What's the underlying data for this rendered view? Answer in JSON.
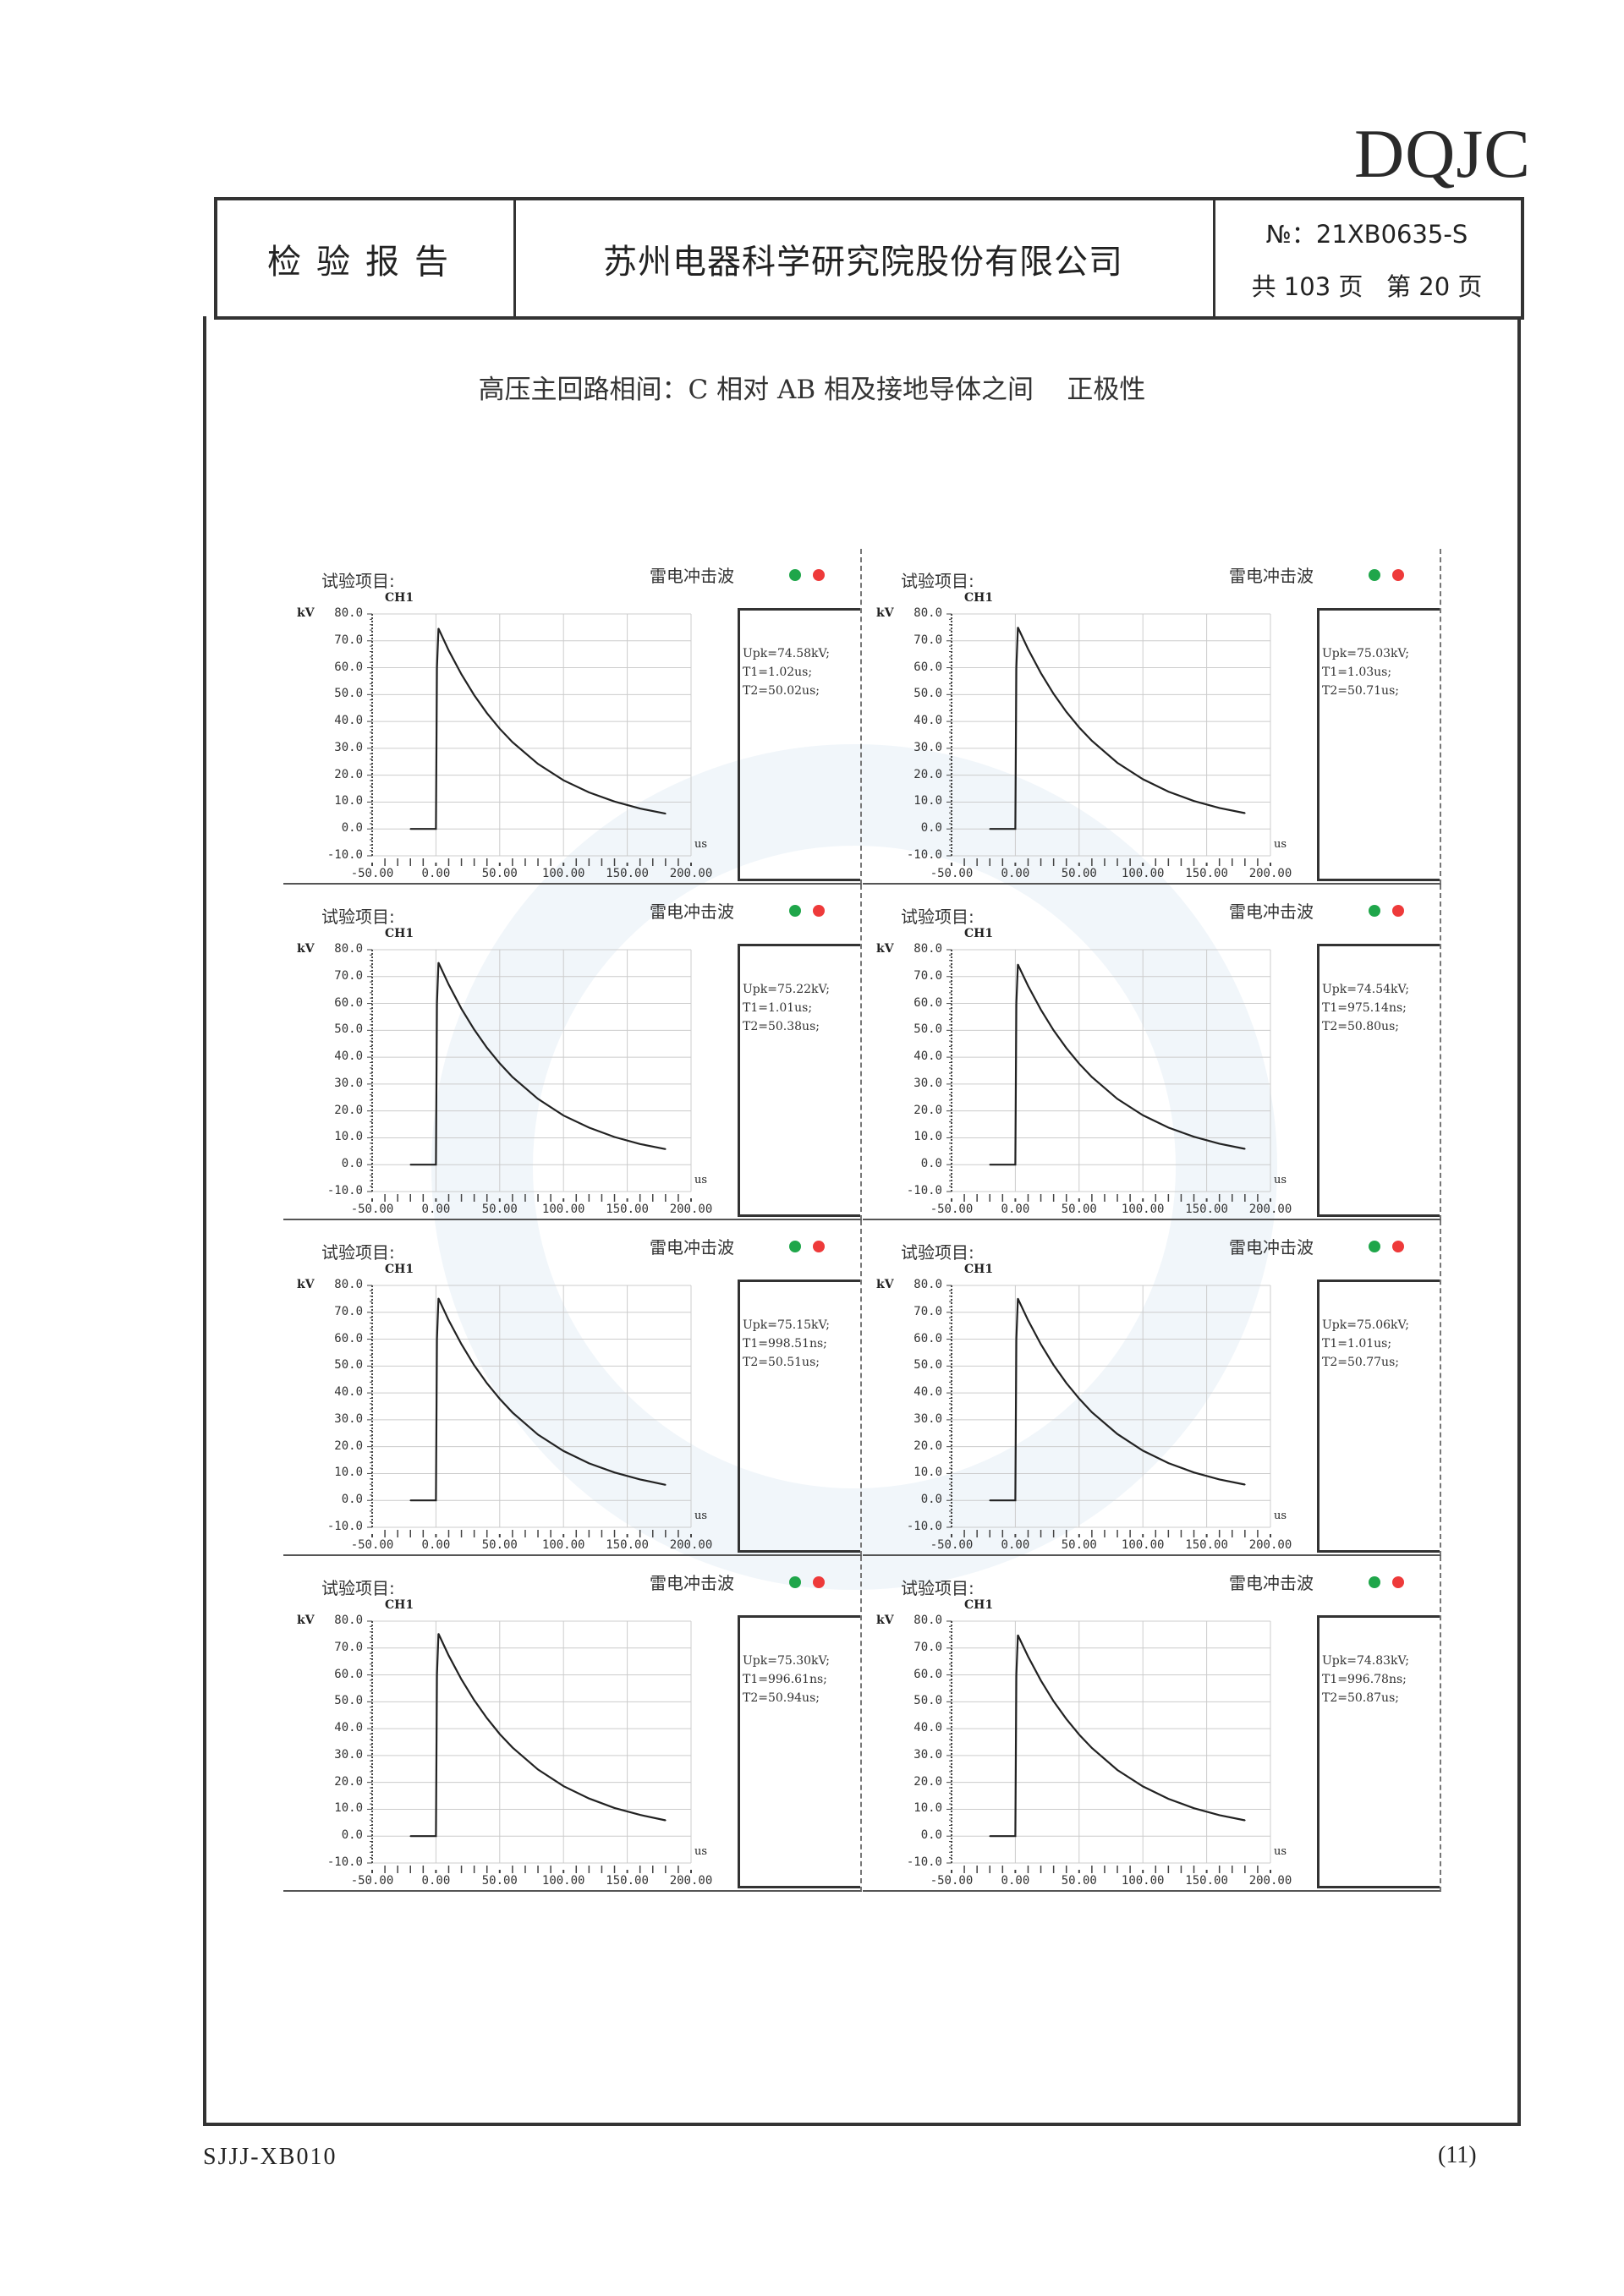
{
  "logo": "DQJC",
  "header": {
    "doc_type": "检验报告",
    "company": "苏州电器科学研究院股份有限公司",
    "report_no": "№：21XB0635-S",
    "pages": "共 103 页   第 20 页"
  },
  "subtitle": "高压主回路相间：C 相对 AB 相及接地导体之间    正极性",
  "panel_labels": {
    "title": "试验项目:",
    "wave": "雷电冲击波",
    "channel": "CH1",
    "unit_y": "kV",
    "unit_x": "us"
  },
  "colors": {
    "indicator_green": "#1fa64a",
    "indicator_red": "#ee3a3a",
    "trace": "#222222",
    "grid": "#cccccc"
  },
  "chart_data": [
    {
      "type": "line",
      "title": "",
      "xlabel": "us",
      "ylabel": "kV",
      "xlim": [
        -50,
        200
      ],
      "ylim": [
        -10,
        80
      ],
      "grid": true,
      "xticks": [
        "-50.00",
        "0.00",
        "50.00",
        "100.00",
        "150.00",
        "200.00"
      ],
      "yticks": [
        "80.0",
        "70.0",
        "60.0",
        "50.0",
        "40.0",
        "30.0",
        "20.0",
        "10.0",
        "0.0",
        "-10.0"
      ],
      "readout": [
        "Upk=74.58kV;",
        "T1=1.02us;",
        "T2=50.02us;"
      ],
      "x": [
        -20,
        0,
        0.8,
        2,
        10,
        20,
        30,
        40,
        50,
        60,
        80,
        100,
        120,
        140,
        160,
        180
      ],
      "y": [
        0,
        0,
        60,
        74.6,
        66.4,
        57.5,
        49.8,
        43.1,
        37.3,
        32.3,
        24.2,
        18.1,
        13.6,
        10.2,
        7.6,
        5.7
      ]
    },
    {
      "type": "line",
      "title": "",
      "xlabel": "us",
      "ylabel": "kV",
      "xlim": [
        -50,
        200
      ],
      "ylim": [
        -10,
        80
      ],
      "grid": true,
      "xticks": [
        "-50.00",
        "0.00",
        "50.00",
        "100.00",
        "150.00",
        "200.00"
      ],
      "yticks": [
        "80.0",
        "70.0",
        "60.0",
        "50.0",
        "40.0",
        "30.0",
        "20.0",
        "10.0",
        "0.0",
        "-10.0"
      ],
      "readout": [
        "Upk=75.03kV;",
        "T1=1.03us;",
        "T2=50.71us;"
      ],
      "x": [
        -20,
        0,
        0.8,
        2,
        10,
        20,
        30,
        40,
        50,
        60,
        80,
        100,
        120,
        140,
        160,
        180
      ],
      "y": [
        0,
        0,
        60,
        75.0,
        66.9,
        58.0,
        50.3,
        43.6,
        37.8,
        32.8,
        24.6,
        18.5,
        13.9,
        10.4,
        7.8,
        5.9
      ]
    },
    {
      "type": "line",
      "title": "",
      "xlabel": "us",
      "ylabel": "kV",
      "xlim": [
        -50,
        200
      ],
      "ylim": [
        -10,
        80
      ],
      "grid": true,
      "xticks": [
        "-50.00",
        "0.00",
        "50.00",
        "100.00",
        "150.00",
        "200.00"
      ],
      "yticks": [
        "80.0",
        "70.0",
        "60.0",
        "50.0",
        "40.0",
        "30.0",
        "20.0",
        "10.0",
        "0.0",
        "-10.0"
      ],
      "readout": [
        "Upk=75.22kV;",
        "T1=1.01us;",
        "T2=50.38us;"
      ],
      "x": [
        -20,
        0,
        0.8,
        2,
        10,
        20,
        30,
        40,
        50,
        60,
        80,
        100,
        120,
        140,
        160,
        180
      ],
      "y": [
        0,
        0,
        60,
        75.2,
        67.0,
        58.0,
        50.3,
        43.5,
        37.7,
        32.6,
        24.5,
        18.3,
        13.8,
        10.3,
        7.7,
        5.8
      ]
    },
    {
      "type": "line",
      "title": "",
      "xlabel": "us",
      "ylabel": "kV",
      "xlim": [
        -50,
        200
      ],
      "ylim": [
        -10,
        80
      ],
      "grid": true,
      "xticks": [
        "-50.00",
        "0.00",
        "50.00",
        "100.00",
        "150.00",
        "200.00"
      ],
      "yticks": [
        "80.0",
        "70.0",
        "60.0",
        "50.0",
        "40.0",
        "30.0",
        "20.0",
        "10.0",
        "0.0",
        "-10.0"
      ],
      "readout": [
        "Upk=74.54kV;",
        "T1=975.14ns;",
        "T2=50.80us;"
      ],
      "x": [
        -20,
        0,
        0.8,
        2,
        10,
        20,
        30,
        40,
        50,
        60,
        80,
        100,
        120,
        140,
        160,
        180
      ],
      "y": [
        0,
        0,
        60,
        74.5,
        66.5,
        57.7,
        50.0,
        43.4,
        37.6,
        32.6,
        24.5,
        18.4,
        13.8,
        10.4,
        7.8,
        5.9
      ]
    },
    {
      "type": "line",
      "title": "",
      "xlabel": "us",
      "ylabel": "kV",
      "xlim": [
        -50,
        200
      ],
      "ylim": [
        -10,
        80
      ],
      "grid": true,
      "xticks": [
        "-50.00",
        "0.00",
        "50.00",
        "100.00",
        "150.00",
        "200.00"
      ],
      "yticks": [
        "80.0",
        "70.0",
        "60.0",
        "50.0",
        "40.0",
        "30.0",
        "20.0",
        "10.0",
        "0.0",
        "-10.0"
      ],
      "readout": [
        "Upk=75.15kV;",
        "T1=998.51ns;",
        "T2=50.51us;"
      ],
      "x": [
        -20,
        0,
        0.8,
        2,
        10,
        20,
        30,
        40,
        50,
        60,
        80,
        100,
        120,
        140,
        160,
        180
      ],
      "y": [
        0,
        0,
        60,
        75.2,
        67.0,
        58.1,
        50.3,
        43.6,
        37.8,
        32.7,
        24.5,
        18.4,
        13.8,
        10.4,
        7.8,
        5.8
      ]
    },
    {
      "type": "line",
      "title": "",
      "xlabel": "us",
      "ylabel": "kV",
      "xlim": [
        -50,
        200
      ],
      "ylim": [
        -10,
        80
      ],
      "grid": true,
      "xticks": [
        "-50.00",
        "0.00",
        "50.00",
        "100.00",
        "150.00",
        "200.00"
      ],
      "yticks": [
        "80.0",
        "70.0",
        "60.0",
        "50.0",
        "40.0",
        "30.0",
        "20.0",
        "10.0",
        "0.0",
        "-10.0"
      ],
      "readout": [
        "Upk=75.06kV;",
        "T1=1.01us;",
        "T2=50.77us;"
      ],
      "x": [
        -20,
        0,
        0.8,
        2,
        10,
        20,
        30,
        40,
        50,
        60,
        80,
        100,
        120,
        140,
        160,
        180
      ],
      "y": [
        0,
        0,
        60,
        75.1,
        67.0,
        58.1,
        50.4,
        43.7,
        37.9,
        32.8,
        24.7,
        18.5,
        13.9,
        10.4,
        7.8,
        5.9
      ]
    },
    {
      "type": "line",
      "title": "",
      "xlabel": "us",
      "ylabel": "kV",
      "xlim": [
        -50,
        200
      ],
      "ylim": [
        -10,
        80
      ],
      "grid": true,
      "xticks": [
        "-50.00",
        "0.00",
        "50.00",
        "100.00",
        "150.00",
        "200.00"
      ],
      "yticks": [
        "80.0",
        "70.0",
        "60.0",
        "50.0",
        "40.0",
        "30.0",
        "20.0",
        "10.0",
        "0.0",
        "-10.0"
      ],
      "readout": [
        "Upk=75.30kV;",
        "T1=996.61ns;",
        "T2=50.94us;"
      ],
      "x": [
        -20,
        0,
        0.8,
        2,
        10,
        20,
        30,
        40,
        50,
        60,
        80,
        100,
        120,
        140,
        160,
        180
      ],
      "y": [
        0,
        0,
        60,
        75.3,
        67.2,
        58.3,
        50.6,
        43.9,
        38.0,
        33.0,
        24.8,
        18.6,
        14.0,
        10.5,
        7.9,
        5.9
      ]
    },
    {
      "type": "line",
      "title": "",
      "xlabel": "us",
      "ylabel": "kV",
      "xlim": [
        -50,
        200
      ],
      "ylim": [
        -10,
        80
      ],
      "grid": true,
      "xticks": [
        "-50.00",
        "0.00",
        "50.00",
        "100.00",
        "150.00",
        "200.00"
      ],
      "yticks": [
        "80.0",
        "70.0",
        "60.0",
        "50.0",
        "40.0",
        "30.0",
        "20.0",
        "10.0",
        "0.0",
        "-10.0"
      ],
      "readout": [
        "Upk=74.83kV;",
        "T1=996.78ns;",
        "T2=50.87us;"
      ],
      "x": [
        -20,
        0,
        0.8,
        2,
        10,
        20,
        30,
        40,
        50,
        60,
        80,
        100,
        120,
        140,
        160,
        180
      ],
      "y": [
        0,
        0,
        60,
        74.8,
        66.8,
        57.9,
        50.2,
        43.6,
        37.8,
        32.8,
        24.6,
        18.5,
        13.9,
        10.4,
        7.8,
        5.9
      ]
    }
  ],
  "footer": {
    "form_code": "SJJJ-XB010",
    "page_code": "(11)"
  }
}
